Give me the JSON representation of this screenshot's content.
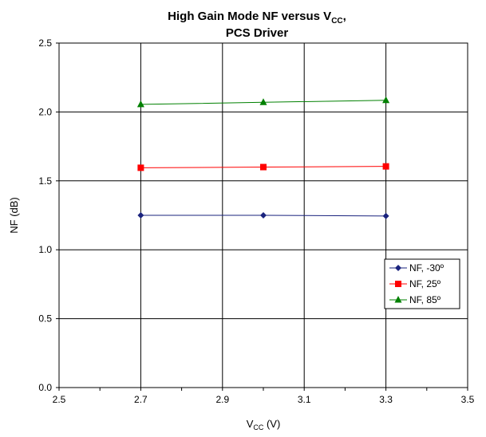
{
  "chart_data": {
    "type": "line",
    "title_line1": "High Gain Mode NF versus V",
    "title_sub": "CC",
    "title_suffix": ",",
    "title_line2": "PCS Driver",
    "xlabel_main": "V",
    "xlabel_sub": "CC",
    "xlabel_suffix": " (V)",
    "ylabel": "NF (dB)",
    "xlim": [
      2.5,
      3.5
    ],
    "ylim": [
      0.0,
      2.5
    ],
    "x_ticks": [
      "2.5",
      "2.7",
      "2.9",
      "3.1",
      "3.3",
      "3.5"
    ],
    "y_ticks": [
      "0.0",
      "0.5",
      "1.0",
      "1.5",
      "2.0",
      "2.5"
    ],
    "grid": true,
    "legend_position": "right",
    "x": [
      2.7,
      3.0,
      3.3
    ],
    "series": [
      {
        "name": "NF, -30º",
        "values": [
          1.25,
          1.25,
          1.245
        ],
        "color": "#1a237e",
        "marker": "diamond"
      },
      {
        "name": "NF, 25º",
        "values": [
          1.595,
          1.6,
          1.605
        ],
        "color": "#ff0000",
        "marker": "square"
      },
      {
        "name": "NF, 85º",
        "values": [
          2.055,
          2.07,
          2.085
        ],
        "color": "#008000",
        "marker": "triangle"
      }
    ]
  }
}
